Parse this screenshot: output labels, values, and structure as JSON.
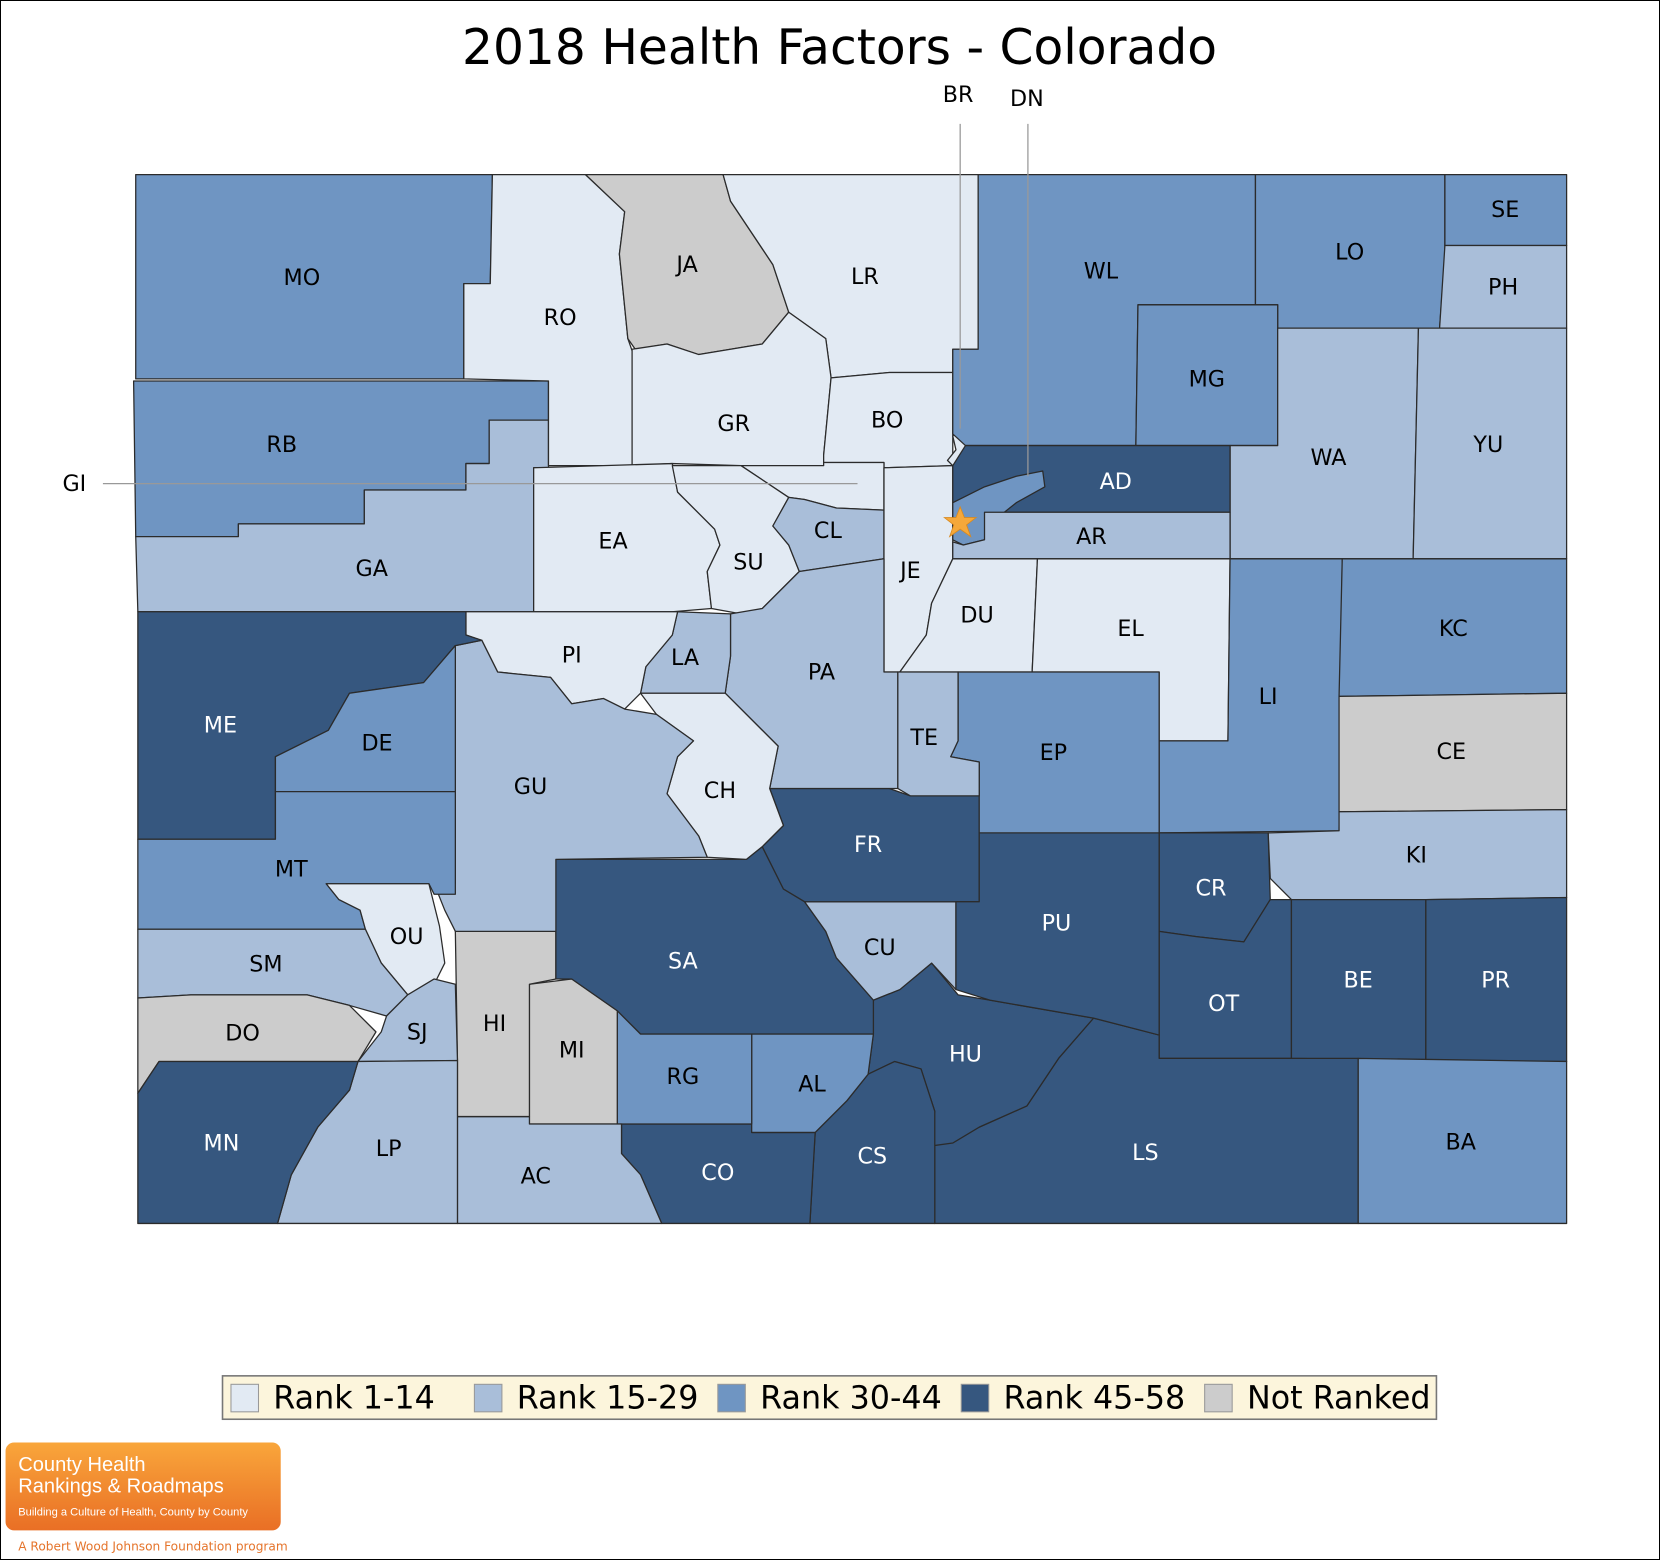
{
  "title": "2018 Health Factors - Colorado",
  "colors": {
    "rank_1_14": "#e2eaf3",
    "rank_15_29": "#a9bed9",
    "rank_30_44": "#6f95c2",
    "rank_45_58": "#36577f",
    "not_ranked": "#cccccc",
    "star": "#f5a83a",
    "legend_background": "#fcf5dc"
  },
  "legend": [
    {
      "label": "Rank 1-14",
      "group": "rank_1_14"
    },
    {
      "label": "Rank 15-29",
      "group": "rank_15_29"
    },
    {
      "label": "Rank 30-44",
      "group": "rank_30_44"
    },
    {
      "label": "Rank 45-58",
      "group": "rank_45_58"
    },
    {
      "label": "Not Ranked",
      "group": "not_ranked"
    }
  ],
  "callouts": [
    "BR",
    "DN",
    "GI"
  ],
  "capital_marker": "star-icon",
  "counties": [
    {
      "id": "MO",
      "group": "rank_30_44"
    },
    {
      "id": "RB",
      "group": "rank_30_44"
    },
    {
      "id": "GA",
      "group": "rank_15_29"
    },
    {
      "id": "RO",
      "group": "rank_1_14"
    },
    {
      "id": "JA",
      "group": "not_ranked"
    },
    {
      "id": "LR",
      "group": "rank_1_14"
    },
    {
      "id": "GR",
      "group": "rank_1_14"
    },
    {
      "id": "BO",
      "group": "rank_1_14"
    },
    {
      "id": "GI",
      "group": "rank_1_14"
    },
    {
      "id": "EA",
      "group": "rank_1_14"
    },
    {
      "id": "SU",
      "group": "rank_1_14"
    },
    {
      "id": "CL",
      "group": "rank_15_29"
    },
    {
      "id": "JE",
      "group": "rank_1_14"
    },
    {
      "id": "BR",
      "group": "rank_1_14"
    },
    {
      "id": "WL",
      "group": "rank_30_44"
    },
    {
      "id": "LO",
      "group": "rank_30_44"
    },
    {
      "id": "SE",
      "group": "rank_30_44"
    },
    {
      "id": "PH",
      "group": "rank_15_29"
    },
    {
      "id": "MG",
      "group": "rank_30_44"
    },
    {
      "id": "WA",
      "group": "rank_15_29"
    },
    {
      "id": "YU",
      "group": "rank_15_29"
    },
    {
      "id": "AD",
      "group": "rank_45_58"
    },
    {
      "id": "DN",
      "group": "rank_30_44"
    },
    {
      "id": "AR",
      "group": "rank_15_29"
    },
    {
      "id": "DU",
      "group": "rank_1_14"
    },
    {
      "id": "EL",
      "group": "rank_1_14"
    },
    {
      "id": "LI",
      "group": "rank_30_44"
    },
    {
      "id": "KC",
      "group": "rank_30_44"
    },
    {
      "id": "CE",
      "group": "not_ranked"
    },
    {
      "id": "KI",
      "group": "rank_15_29"
    },
    {
      "id": "CR",
      "group": "rank_45_58"
    },
    {
      "id": "OT",
      "group": "rank_45_58"
    },
    {
      "id": "BE",
      "group": "rank_45_58"
    },
    {
      "id": "PR",
      "group": "rank_45_58"
    },
    {
      "id": "BA",
      "group": "rank_30_44"
    },
    {
      "id": "LS",
      "group": "rank_45_58"
    },
    {
      "id": "HU",
      "group": "rank_45_58"
    },
    {
      "id": "CS",
      "group": "rank_45_58"
    },
    {
      "id": "CO",
      "group": "rank_45_58"
    },
    {
      "id": "AL",
      "group": "rank_30_44"
    },
    {
      "id": "RG",
      "group": "rank_30_44"
    },
    {
      "id": "MI",
      "group": "not_ranked"
    },
    {
      "id": "AC",
      "group": "rank_15_29"
    },
    {
      "id": "HI",
      "group": "not_ranked"
    },
    {
      "id": "SA",
      "group": "rank_45_58"
    },
    {
      "id": "CU",
      "group": "rank_15_29"
    },
    {
      "id": "FR",
      "group": "rank_45_58"
    },
    {
      "id": "PU",
      "group": "rank_45_58"
    },
    {
      "id": "EP",
      "group": "rank_30_44"
    },
    {
      "id": "TE",
      "group": "rank_15_29"
    },
    {
      "id": "PA",
      "group": "rank_15_29"
    },
    {
      "id": "LA",
      "group": "rank_15_29"
    },
    {
      "id": "CH",
      "group": "rank_1_14"
    },
    {
      "id": "PI",
      "group": "rank_1_14"
    },
    {
      "id": "GU",
      "group": "rank_15_29"
    },
    {
      "id": "ME",
      "group": "rank_45_58"
    },
    {
      "id": "DE",
      "group": "rank_30_44"
    },
    {
      "id": "MT",
      "group": "rank_30_44"
    },
    {
      "id": "OU",
      "group": "rank_1_14"
    },
    {
      "id": "SM",
      "group": "rank_15_29"
    },
    {
      "id": "DO",
      "group": "not_ranked"
    },
    {
      "id": "SJ",
      "group": "rank_15_29"
    },
    {
      "id": "LP",
      "group": "rank_15_29"
    },
    {
      "id": "MN",
      "group": "rank_45_58"
    }
  ],
  "logo": {
    "line1": "County Health",
    "line2": "Rankings & Roadmaps",
    "tagline": "Building a Culture of Health, County by County",
    "footer": "A Robert Wood Johnson Foundation program"
  }
}
